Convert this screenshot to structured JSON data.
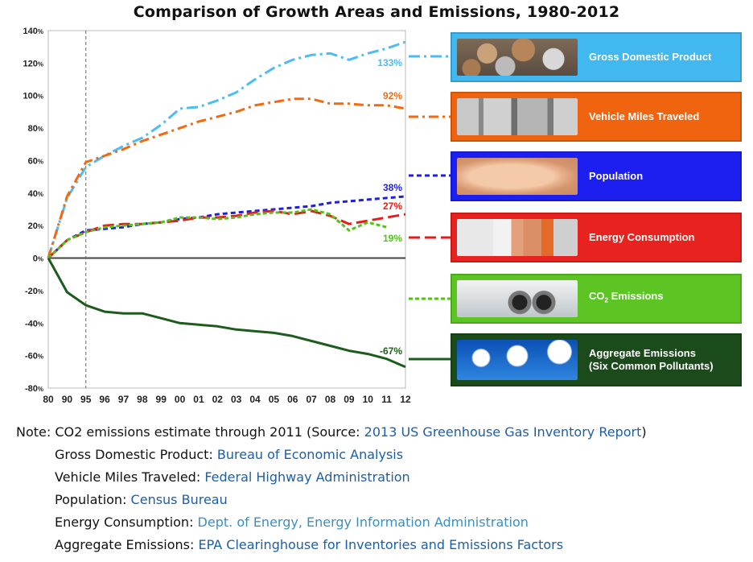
{
  "title": "Comparison of Growth Areas and Emissions, 1980-2012",
  "chart_data": {
    "type": "line",
    "x": [
      "80",
      "90",
      "95",
      "96",
      "97",
      "98",
      "99",
      "00",
      "01",
      "02",
      "03",
      "04",
      "05",
      "06",
      "07",
      "08",
      "09",
      "10",
      "11",
      "12"
    ],
    "ylim": [
      -80,
      140
    ],
    "yticks": [
      "140%",
      "120%",
      "100%",
      "80%",
      "60%",
      "40%",
      "20%",
      "0%",
      "-20%",
      "-40%",
      "-60%",
      "-80%"
    ],
    "ytick_values": [
      140,
      120,
      100,
      80,
      60,
      40,
      20,
      0,
      -20,
      -40,
      -60,
      -80
    ],
    "series": [
      {
        "name": "Gross Domestic Product",
        "color": "#4dbcf2",
        "dash": "14 5 3 5",
        "values": [
          0,
          37,
          56,
          63,
          69,
          74,
          82,
          92,
          93,
          97,
          102,
          110,
          117,
          122,
          125,
          126,
          122,
          126,
          129,
          133
        ],
        "end_label": "133%"
      },
      {
        "name": "Vehicle Miles Traveled",
        "color": "#f26a10",
        "dash": "12 5 3 5",
        "values": [
          0,
          38,
          59,
          63,
          67,
          72,
          76,
          80,
          84,
          87,
          90,
          94,
          96,
          98,
          98,
          95,
          95,
          94,
          94,
          92
        ],
        "end_label": "92%"
      },
      {
        "name": "Population",
        "color": "#1f1fe0",
        "dash": "6 4",
        "values": [
          0,
          11,
          17,
          18,
          19,
          21,
          22,
          24,
          25,
          27,
          28,
          29,
          30,
          31,
          32,
          34,
          35,
          36,
          37,
          38
        ],
        "end_label": "38%"
      },
      {
        "name": "Energy Consumption",
        "color": "#e51c1c",
        "dash": "14 6",
        "values": [
          0,
          11,
          16,
          20,
          21,
          21,
          22,
          23,
          25,
          25,
          26,
          28,
          29,
          27,
          29,
          26,
          21,
          23,
          25,
          27
        ],
        "end_label": "27%"
      },
      {
        "name": "CO2 Emissions",
        "color": "#55c21b",
        "dash": "5 3",
        "values": [
          0,
          11,
          16,
          19,
          20,
          21,
          22,
          25,
          25,
          24,
          25,
          27,
          28,
          28,
          30,
          27,
          17,
          22,
          19,
          null
        ],
        "end_label": "19%"
      },
      {
        "name": "Aggregate Emissions (Six Common Pollutants)",
        "color": "#1d5c1d",
        "dash": "",
        "values": [
          0,
          -21,
          -29,
          -33,
          -34,
          -34,
          -37,
          -40,
          -41,
          -42,
          -44,
          -45,
          -46,
          -48,
          -51,
          -54,
          -57,
          -59,
          -62,
          -67
        ],
        "end_label": "-67%"
      }
    ],
    "vline_at": "95",
    "zero_line": true
  },
  "legend_panels": [
    {
      "label": "Gross Domestic Product",
      "bg": "#41b8ef",
      "pic": "coins-photo",
      "connector": "#4dbcf2"
    },
    {
      "label": "Vehicle Miles Traveled",
      "bg": "#f0640f",
      "pic": "traffic-photo",
      "connector": "#f26a10"
    },
    {
      "label": "Population",
      "bg": "#1c1ff0",
      "pic": "baby-photo",
      "connector": "#1f1fe0"
    },
    {
      "label": "Energy Consumption",
      "bg": "#e8231f",
      "pic": "power-plug-photo",
      "connector": "#e51c1c"
    },
    {
      "label": "CO",
      "label_sub": "2",
      "label_tail": " Emissions",
      "bg": "#5cc524",
      "pic": "exhaust-pipe-photo",
      "connector": "#55c21b"
    },
    {
      "label": "Aggregate Emissions",
      "label2": "(Six Common Pollutants)",
      "bg": "#1b4a1b",
      "pic": "smokestacks-photo",
      "connector": "#1d5c1d"
    }
  ],
  "notes": {
    "line1_prefix": "Note: CO2 emissions estimate through 2011 (Source: ",
    "line1_link": "2013 US Greenhouse Gas Inventory Report",
    "line1_suffix": ")",
    "sources": [
      {
        "label": "Gross Domestic Product: ",
        "link": "Bureau of Economic Analysis"
      },
      {
        "label": "Vehicle Miles Traveled: ",
        "link": "Federal Highway Administration"
      },
      {
        "label": "Population: ",
        "link": "Census Bureau"
      },
      {
        "label": "Energy Consumption: ",
        "link": "Dept. of Energy, Energy Information Administration"
      },
      {
        "label": "Aggregate Emissions: ",
        "link": "EPA Clearinghouse for Inventories and Emissions Factors"
      }
    ]
  }
}
